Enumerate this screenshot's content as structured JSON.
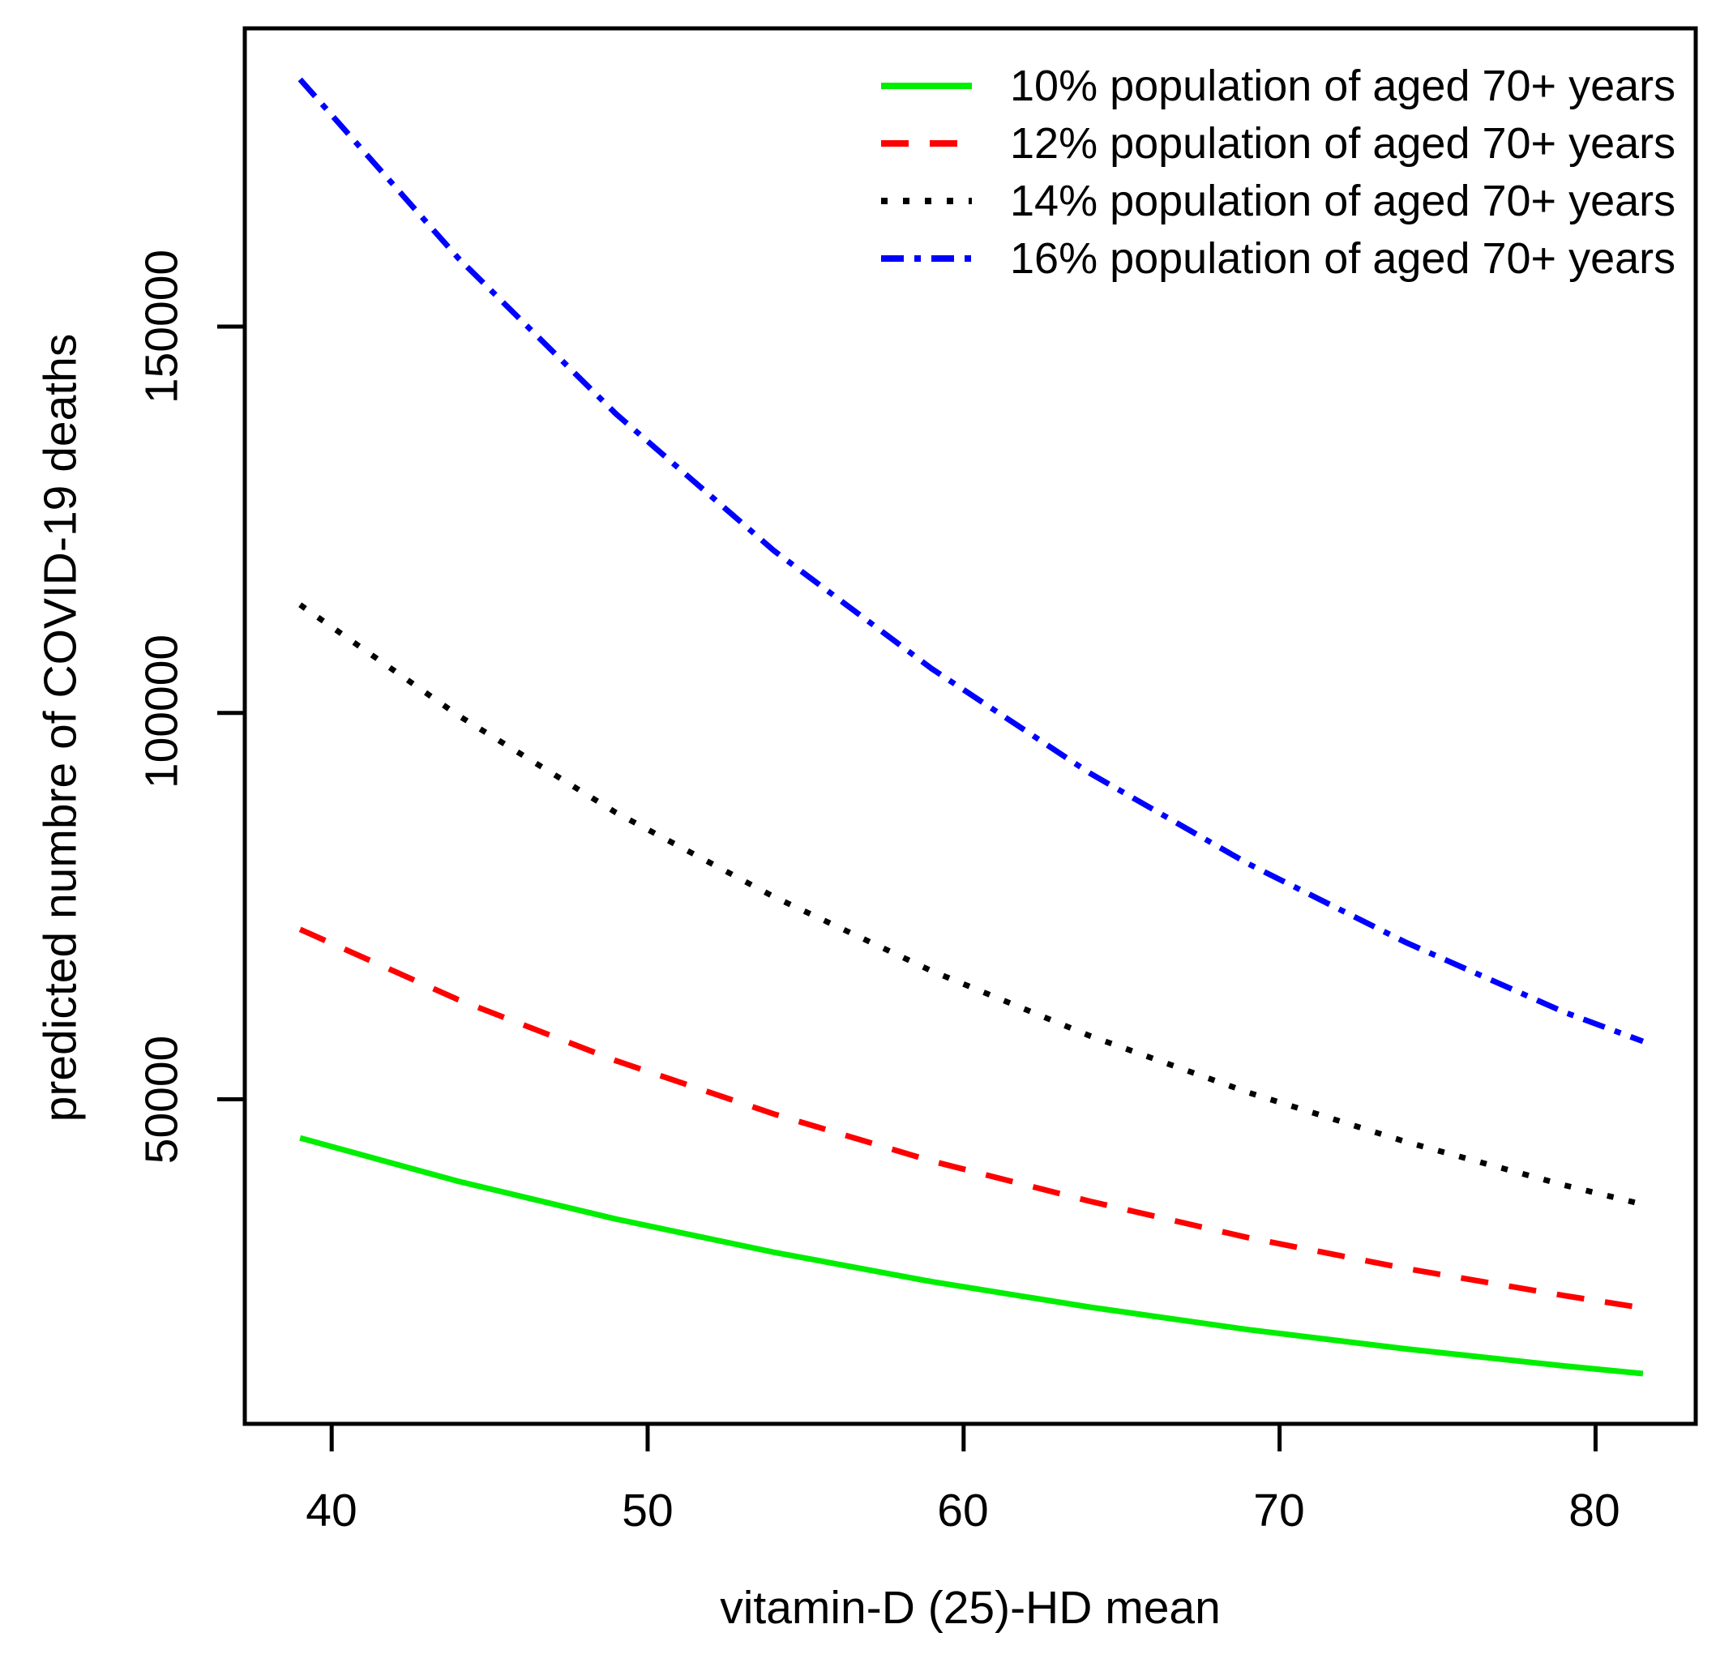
{
  "figure": {
    "background": "#ffffff",
    "frame_color": "#000000"
  },
  "chart_data": {
    "type": "line",
    "title": "",
    "xlabel": "vitamin-D (25)-HD mean",
    "ylabel": "predicted numbre of COVID-19 deaths",
    "xlim": [
      37.25,
      83.17
    ],
    "ylim": [
      8000,
      188600
    ],
    "xticks": [
      40,
      50,
      60,
      70,
      80
    ],
    "yticks": [
      50000,
      100000,
      150000
    ],
    "grid": false,
    "legend_position": "top-right",
    "x": [
      39,
      44,
      49,
      54,
      59,
      64,
      69,
      74,
      79,
      81.5
    ],
    "series": [
      {
        "name": "10% population of aged 70+ years",
        "color": "#00ee00",
        "style": "solid",
        "values": [
          45000,
          39400,
          34500,
          30200,
          26400,
          23100,
          20200,
          17700,
          15500,
          14500
        ]
      },
      {
        "name": "12% population of aged 70+ years",
        "color": "#ff0000",
        "style": "dashed",
        "values": [
          72000,
          62900,
          55000,
          48100,
          42000,
          36800,
          32100,
          28100,
          24600,
          23000
        ]
      },
      {
        "name": "14% population of aged 70+ years",
        "color": "#000000",
        "style": "dotted",
        "values": [
          114000,
          99700,
          87100,
          76200,
          66600,
          58200,
          50900,
          44500,
          38900,
          36400
        ]
      },
      {
        "name": "16% population of aged 70+ years",
        "color": "#0000ff",
        "style": "dashdot",
        "values": [
          182000,
          158900,
          138700,
          121000,
          105700,
          92200,
          80500,
          70300,
          61300,
          57500
        ]
      }
    ]
  }
}
